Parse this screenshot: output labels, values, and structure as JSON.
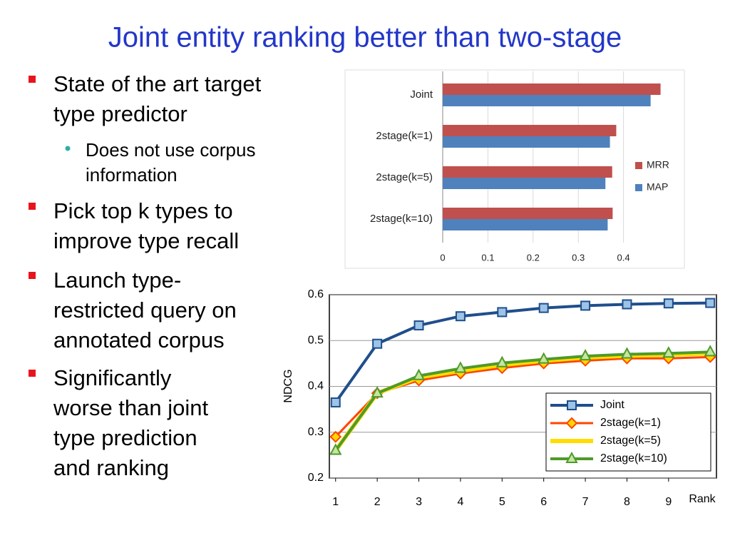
{
  "title": "Joint entity ranking better than two-stage",
  "bullets": [
    {
      "lines": [
        "State of the art target",
        "type predictor"
      ],
      "sub": [
        {
          "lines": [
            "Does not use corpus",
            "information"
          ]
        }
      ]
    },
    {
      "lines": [
        "Pick top k types to",
        "improve type recall"
      ]
    },
    {
      "lines": [
        "Launch type-",
        "restricted query on",
        "annotated corpus"
      ]
    },
    {
      "lines": [
        "Significantly",
        "worse than joint",
        "type prediction",
        "and ranking"
      ]
    }
  ],
  "chart_data": [
    {
      "type": "hbar",
      "categories": [
        "Joint",
        "2stage(k=1)",
        "2stage(k=5)",
        "2stage(k=10)"
      ],
      "series": [
        {
          "name": "MRR",
          "color": "#c0504d",
          "values": [
            0.482,
            0.384,
            0.375,
            0.376
          ]
        },
        {
          "name": "MAP",
          "color": "#4f81bd",
          "values": [
            0.46,
            0.37,
            0.36,
            0.365
          ]
        }
      ],
      "xlim": [
        0,
        0.5
      ],
      "xticks": [
        0,
        0.1,
        0.2,
        0.3,
        0.4
      ],
      "legend": "right"
    },
    {
      "type": "line",
      "xlabel": "Rank",
      "ylabel": "NDCG",
      "x": [
        1,
        2,
        3,
        4,
        5,
        6,
        7,
        8,
        9,
        10
      ],
      "series": [
        {
          "name": "Joint",
          "color": "#1f4e8c",
          "marker": "square",
          "marker_color": "#9dc3e6",
          "width": 4,
          "values": [
            0.365,
            0.493,
            0.533,
            0.553,
            0.562,
            0.571,
            0.576,
            0.579,
            0.581,
            0.582
          ]
        },
        {
          "name": "2stage(k=1)",
          "color": "#ff4500",
          "marker": "diamond",
          "marker_color": "#ffd700",
          "width": 3,
          "values": [
            0.29,
            0.385,
            0.413,
            0.428,
            0.44,
            0.45,
            0.456,
            0.461,
            0.461,
            0.464
          ]
        },
        {
          "name": "2stage(k=5)",
          "color": "#ffdd00",
          "marker": "none",
          "marker_color": "#ffdd00",
          "width": 6,
          "values": [
            0.26,
            0.385,
            0.42,
            0.434,
            0.447,
            0.456,
            0.463,
            0.467,
            0.469,
            0.472
          ]
        },
        {
          "name": "2stage(k=10)",
          "color": "#4e9a2a",
          "marker": "triangle",
          "marker_color": "#c6e6a0",
          "width": 4,
          "values": [
            0.26,
            0.385,
            0.423,
            0.439,
            0.451,
            0.459,
            0.466,
            0.47,
            0.472,
            0.475
          ]
        }
      ],
      "xlim": [
        0.85,
        10.15
      ],
      "xticks": [
        1,
        2,
        3,
        4,
        5,
        6,
        7,
        8,
        9
      ],
      "ylim": [
        0.2,
        0.6
      ],
      "yticks": [
        0.2,
        0.3,
        0.4,
        0.5,
        0.6
      ],
      "grid": true,
      "legend": "lower right"
    }
  ]
}
